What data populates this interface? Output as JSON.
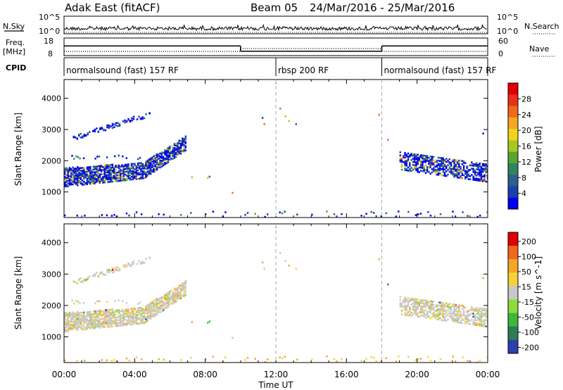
{
  "header": {
    "radar": "Adak East (fitACF)",
    "beam": "Beam 05",
    "dates": "24/Mar/2016 - 25/Mar/2016"
  },
  "top_panels": {
    "nsky_label": "N.Sky",
    "nsearch_label": "N.Search",
    "noise_ticks": [
      "10^5",
      "10^0"
    ],
    "freq_label": "Freq.",
    "freq_unit": "[MHz]",
    "freq_ticks": [
      "18",
      "8"
    ],
    "nave_label": "Nave",
    "nave_ticks": [
      "60",
      "0"
    ],
    "cpid_label": "CPID",
    "cpid_segments": [
      {
        "label": "normalsound (fast) 157 RF",
        "start_h": 0,
        "end_h": 12
      },
      {
        "label": "rbsp 200 RF",
        "start_h": 12,
        "end_h": 18
      },
      {
        "label": "normalsound (fast) 157 RF",
        "start_h": 18,
        "end_h": 24
      }
    ],
    "freq_steps": [
      {
        "start_h": 0,
        "end_h": 10,
        "mhz": 13.5
      },
      {
        "start_h": 10,
        "end_h": 18,
        "mhz": 10.5
      },
      {
        "start_h": 18,
        "end_h": 24,
        "mhz": 13.5
      }
    ]
  },
  "chart_data": [
    {
      "type": "heatmap",
      "panel": "power",
      "ylabel": "Slant Range [km]",
      "xlabel": "",
      "yticks": [
        1000,
        2000,
        3000,
        4000
      ],
      "ylim": [
        180,
        4600
      ],
      "xlim": [
        0,
        24
      ],
      "colorbar": {
        "label": "Power [dB]",
        "ticks": [
          "28",
          "24",
          "20",
          "16",
          "12",
          "8",
          "4"
        ],
        "range": [
          0,
          30
        ],
        "colors": [
          "#0000ee",
          "#1b3fb0",
          "#2a6090",
          "#2f8560",
          "#5aa532",
          "#a8c820",
          "#f2d21e",
          "#f5a623",
          "#ef6a1c",
          "#e8321a",
          "#e00000"
        ]
      },
      "regions": [
        {
          "name": "main echo band",
          "x_start_h": 0,
          "x_end_h": 7,
          "range_km_start": 1250,
          "range_km_end": 2700
        },
        {
          "name": "upper echo streak",
          "x_start_h": 0.5,
          "x_end_h": 4.8,
          "range_km_start": 2700,
          "range_km_end": 3500
        },
        {
          "name": "evening echo band",
          "x_start_h": 19,
          "x_end_h": 24,
          "range_km_start": 1400,
          "range_km_end": 2300
        }
      ]
    },
    {
      "type": "heatmap",
      "panel": "velocity",
      "ylabel": "Slant Range [km]",
      "xlabel": "Time UT",
      "yticks": [
        1000,
        2000,
        3000,
        4000
      ],
      "ylim": [
        180,
        4600
      ],
      "xlim": [
        0,
        24
      ],
      "xticks": [
        "00:00",
        "04:00",
        "08:00",
        "12:00",
        "16:00",
        "20:00",
        "00:00"
      ],
      "colorbar": {
        "label": "Velocity [m s^-1]",
        "ticks": [
          "200",
          "100",
          "50",
          "15",
          "-15",
          "-50",
          "-100",
          "-200"
        ],
        "range": [
          -250,
          250
        ],
        "colors": [
          "#2a3fb0",
          "#2e7b55",
          "#3cb83a",
          "#8edb3a",
          "#c8c8c8",
          "#f5d23c",
          "#f5a623",
          "#ef6a1c",
          "#e00000"
        ]
      }
    }
  ]
}
